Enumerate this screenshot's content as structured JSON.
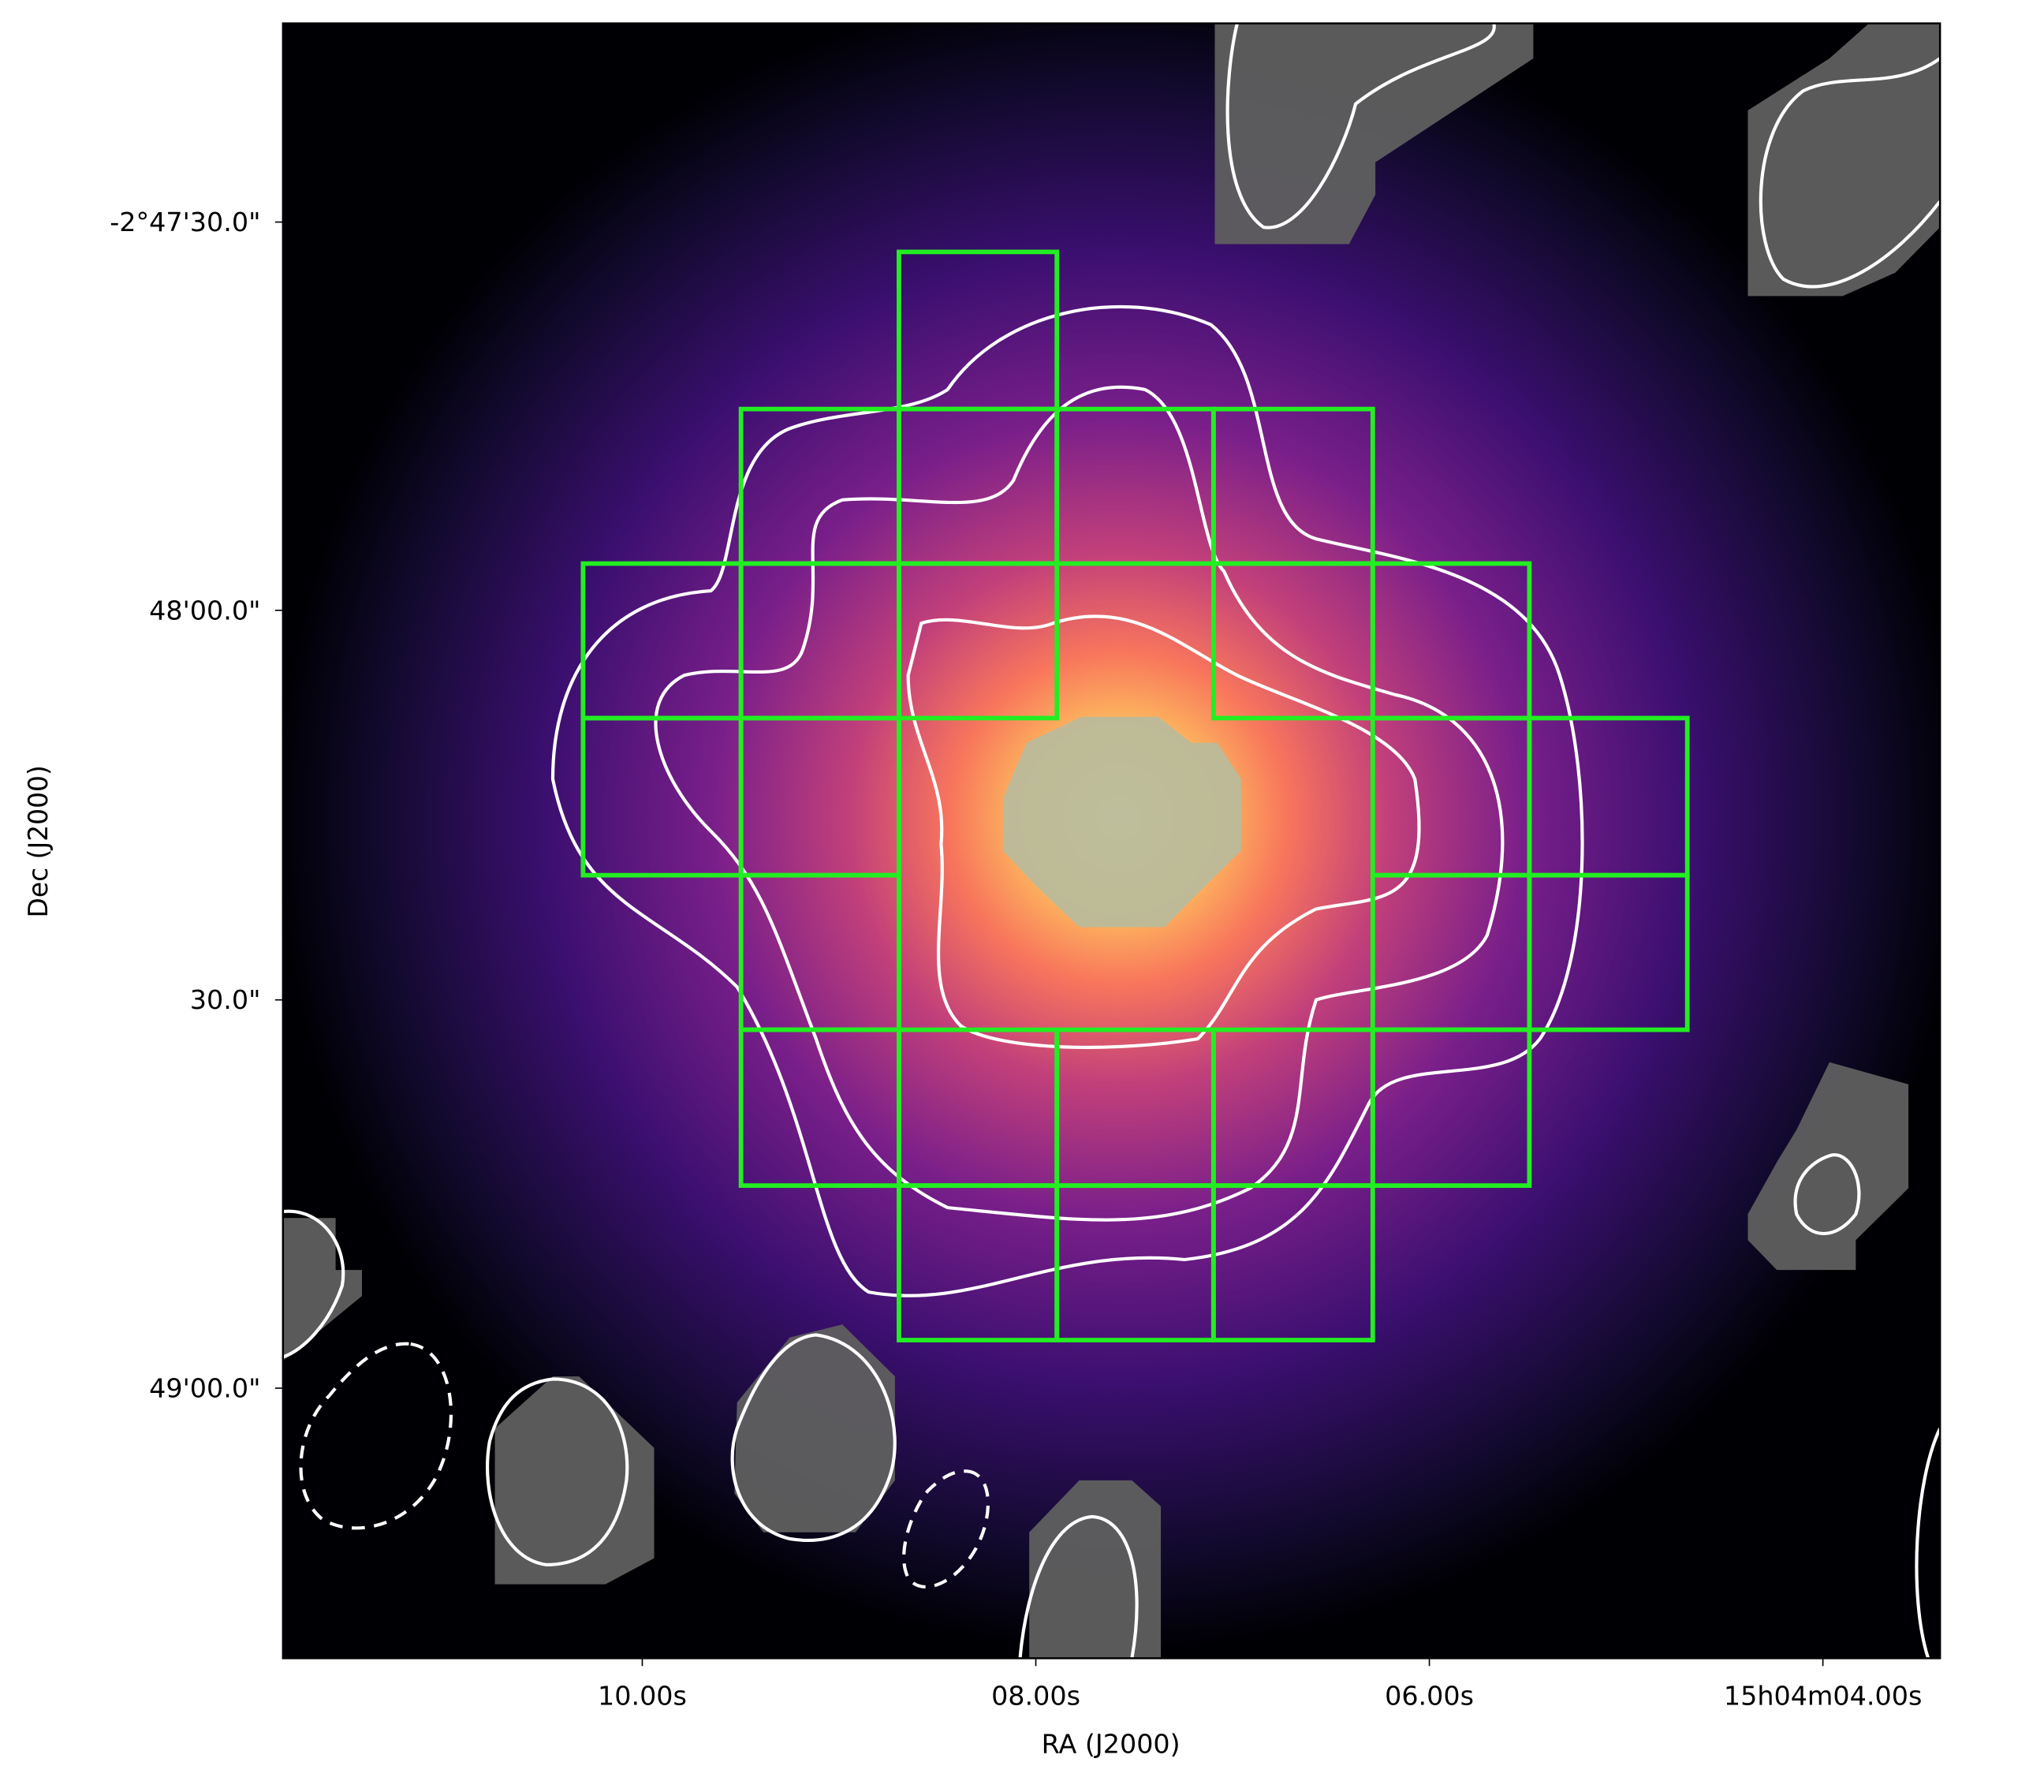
{
  "chart_data": {
    "type": "image",
    "xlabel": "RA (J2000)",
    "ylabel": "Dec (J2000)",
    "xtick_labels": [
      "10.00s",
      "08.00s",
      "06.00s",
      "15h04m04.00s"
    ],
    "ytick_labels": [
      "-2°47'30.0\"",
      "48'00.0\"",
      "30.0\"",
      "49'00.0\""
    ]
  }
}
